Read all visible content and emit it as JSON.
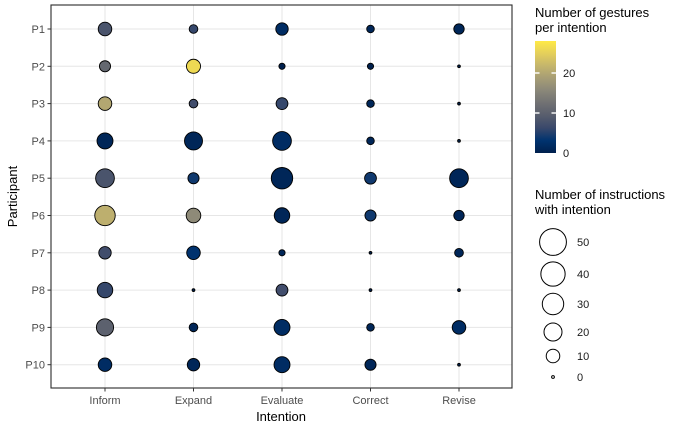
{
  "axes": {
    "x_title": "Intention",
    "y_title": "Participant"
  },
  "legends": {
    "color": {
      "title_lines": [
        "Number of gestures",
        "per intention"
      ],
      "ticks": [
        0,
        10,
        20
      ]
    },
    "size": {
      "title_lines": [
        "Number of instructions",
        "with intention"
      ],
      "values": [
        50,
        40,
        30,
        20,
        10,
        0
      ]
    }
  },
  "chart_data": {
    "type": "bubble",
    "x_categories": [
      "Inform",
      "Expand",
      "Evaluate",
      "Correct",
      "Revise"
    ],
    "y_categories": [
      "P1",
      "P2",
      "P3",
      "P4",
      "P5",
      "P6",
      "P7",
      "P8",
      "P9",
      "P10"
    ],
    "xlabel": "Intention",
    "ylabel": "Participant",
    "grid": "on",
    "color_scale": {
      "name": "cividis",
      "domain": [
        0,
        28
      ],
      "ticks": [
        0,
        10,
        20
      ],
      "stops": [
        "#00204D",
        "#00336F",
        "#39486B",
        "#575D6D",
        "#707173",
        "#8A8779",
        "#A69D75",
        "#C4B56C",
        "#E4CF5B",
        "#FFEA46"
      ]
    },
    "size_scale": {
      "legend_values": [
        50,
        40,
        30,
        20,
        10,
        0
      ]
    },
    "cells": [
      {
        "participant": "P1",
        "by_intention": {
          "Inform": {
            "instructions": 10,
            "gestures": 8
          },
          "Expand": {
            "instructions": 3,
            "gestures": 6
          },
          "Evaluate": {
            "instructions": 8,
            "gestures": 2
          },
          "Correct": {
            "instructions": 2,
            "gestures": 1
          },
          "Revise": {
            "instructions": 5,
            "gestures": 1
          }
        }
      },
      {
        "participant": "P2",
        "by_intention": {
          "Inform": {
            "instructions": 6,
            "gestures": 11
          },
          "Expand": {
            "instructions": 11,
            "gestures": 26
          },
          "Evaluate": {
            "instructions": 1,
            "gestures": 0
          },
          "Correct": {
            "instructions": 1,
            "gestures": 0
          },
          "Revise": {
            "instructions": 0,
            "gestures": 0
          }
        }
      },
      {
        "participant": "P3",
        "by_intention": {
          "Inform": {
            "instructions": 10,
            "gestures": 20
          },
          "Expand": {
            "instructions": 3,
            "gestures": 7
          },
          "Evaluate": {
            "instructions": 7,
            "gestures": 6
          },
          "Correct": {
            "instructions": 2,
            "gestures": 1
          },
          "Revise": {
            "instructions": 0,
            "gestures": 0
          }
        }
      },
      {
        "participant": "P4",
        "by_intention": {
          "Inform": {
            "instructions": 15,
            "gestures": 1
          },
          "Expand": {
            "instructions": 20,
            "gestures": 1
          },
          "Evaluate": {
            "instructions": 22,
            "gestures": 2
          },
          "Correct": {
            "instructions": 2,
            "gestures": 1
          },
          "Revise": {
            "instructions": 0,
            "gestures": 0
          }
        }
      },
      {
        "participant": "P5",
        "by_intention": {
          "Inform": {
            "instructions": 22,
            "gestures": 8
          },
          "Expand": {
            "instructions": 6,
            "gestures": 4
          },
          "Evaluate": {
            "instructions": 30,
            "gestures": 1
          },
          "Correct": {
            "instructions": 7,
            "gestures": 4
          },
          "Revise": {
            "instructions": 22,
            "gestures": 1
          }
        }
      },
      {
        "participant": "P6",
        "by_intention": {
          "Inform": {
            "instructions": 27,
            "gestures": 21
          },
          "Expand": {
            "instructions": 12,
            "gestures": 16
          },
          "Evaluate": {
            "instructions": 14,
            "gestures": 1
          },
          "Correct": {
            "instructions": 6,
            "gestures": 4
          },
          "Revise": {
            "instructions": 5,
            "gestures": 1
          }
        }
      },
      {
        "participant": "P7",
        "by_intention": {
          "Inform": {
            "instructions": 8,
            "gestures": 7
          },
          "Expand": {
            "instructions": 10,
            "gestures": 3
          },
          "Evaluate": {
            "instructions": 1,
            "gestures": 1
          },
          "Correct": {
            "instructions": 0,
            "gestures": 0
          },
          "Revise": {
            "instructions": 3,
            "gestures": 1
          }
        }
      },
      {
        "participant": "P8",
        "by_intention": {
          "Inform": {
            "instructions": 14,
            "gestures": 6
          },
          "Expand": {
            "instructions": 0,
            "gestures": 0
          },
          "Evaluate": {
            "instructions": 7,
            "gestures": 7
          },
          "Correct": {
            "instructions": 0,
            "gestures": 0
          },
          "Revise": {
            "instructions": 0,
            "gestures": 0
          }
        }
      },
      {
        "participant": "P9",
        "by_intention": {
          "Inform": {
            "instructions": 18,
            "gestures": 10
          },
          "Expand": {
            "instructions": 3,
            "gestures": 1
          },
          "Evaluate": {
            "instructions": 15,
            "gestures": 2
          },
          "Correct": {
            "instructions": 2,
            "gestures": 1
          },
          "Revise": {
            "instructions": 10,
            "gestures": 2
          }
        }
      },
      {
        "participant": "P10",
        "by_intention": {
          "Inform": {
            "instructions": 10,
            "gestures": 2
          },
          "Expand": {
            "instructions": 8,
            "gestures": 1
          },
          "Evaluate": {
            "instructions": 15,
            "gestures": 2
          },
          "Correct": {
            "instructions": 6,
            "gestures": 1
          },
          "Revise": {
            "instructions": 0,
            "gestures": 0
          }
        }
      }
    ]
  }
}
